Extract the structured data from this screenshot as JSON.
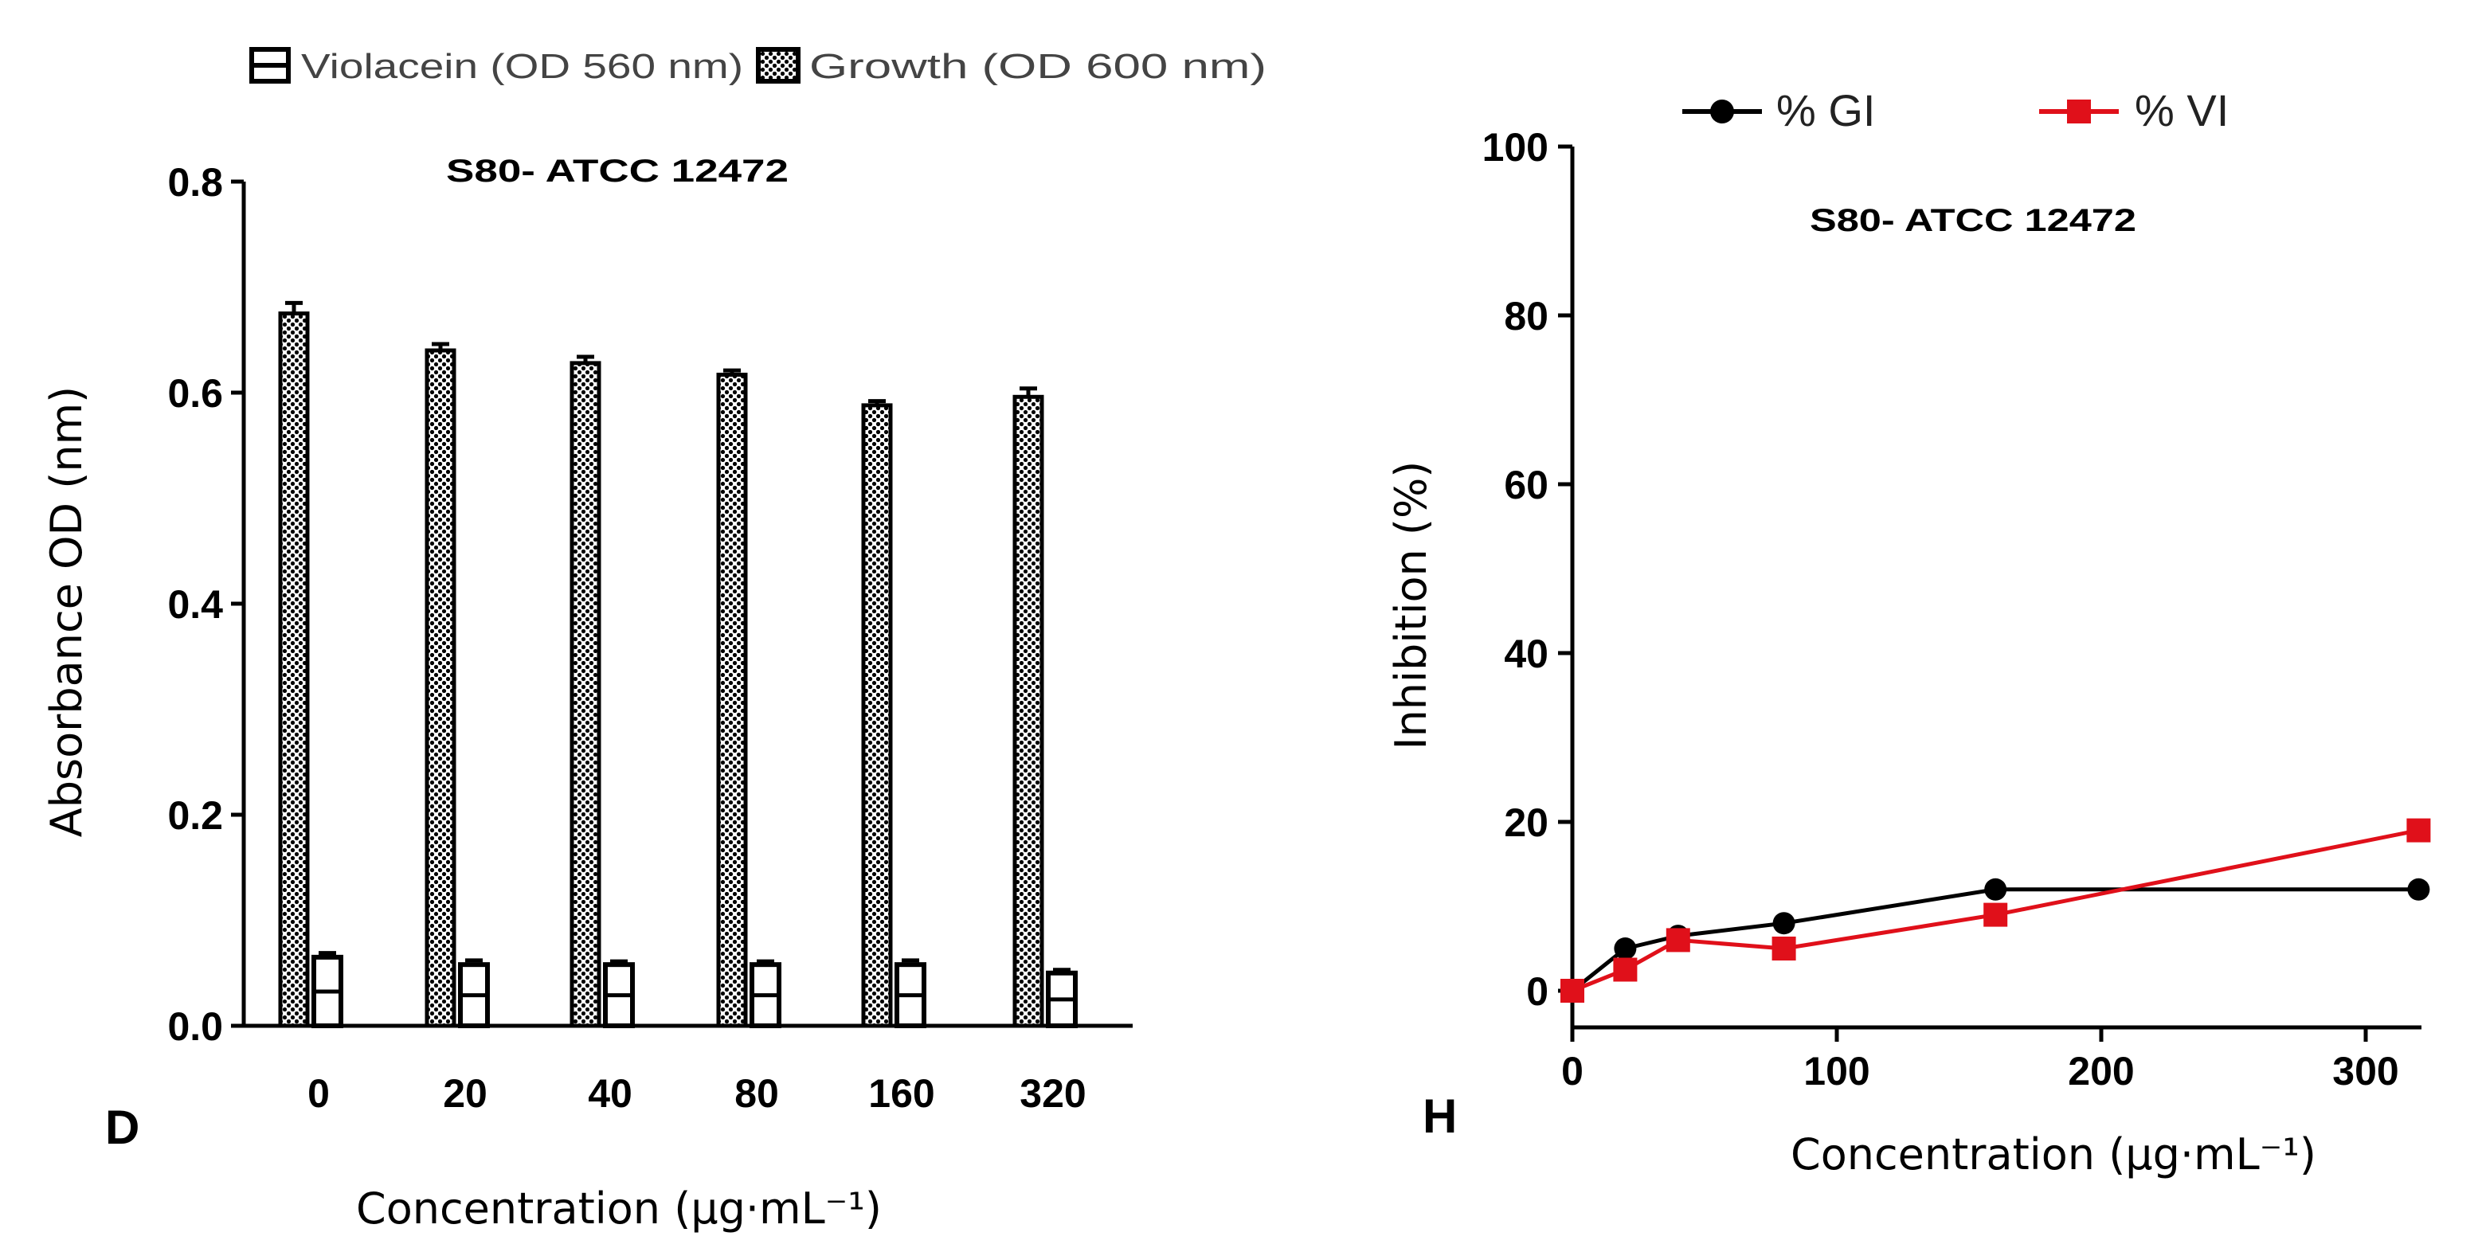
{
  "chart_data": [
    {
      "type": "bar",
      "panel_label": "D",
      "title": "S80- ATCC 12472",
      "xlabel": "Concentration (μg·mL⁻¹)",
      "ylabel": "Absorbance OD (nm)",
      "ylim": [
        0,
        0.8
      ],
      "yticks": [
        "0.0",
        "0.2",
        "0.4",
        "0.6",
        "0.8"
      ],
      "categories": [
        "0",
        "20",
        "40",
        "80",
        "160",
        "320"
      ],
      "legend_position": "top",
      "series": [
        {
          "name": "Violacein (OD 560 nm)",
          "values": [
            0.065,
            0.058,
            0.058,
            0.058,
            0.058,
            0.05
          ],
          "errors": [
            0.004,
            0.004,
            0.003,
            0.003,
            0.004,
            0.003
          ]
        },
        {
          "name": "Growth (OD 600 nm)",
          "values": [
            0.675,
            0.64,
            0.628,
            0.617,
            0.588,
            0.596
          ],
          "errors": [
            0.01,
            0.006,
            0.006,
            0.004,
            0.004,
            0.008
          ]
        }
      ]
    },
    {
      "type": "line",
      "panel_label": "H",
      "title": "S80- ATCC 12472",
      "xlabel": "Concentration (μg·mL⁻¹)",
      "ylabel": "Inhibition (%)",
      "xlim": [
        0,
        320
      ],
      "ylim": [
        0,
        100
      ],
      "xticks": [
        "0",
        "100",
        "200",
        "300"
      ],
      "yticks": [
        "0",
        "20",
        "40",
        "60",
        "80",
        "100"
      ],
      "legend_position": "top",
      "x": [
        0,
        20,
        40,
        80,
        160,
        320
      ],
      "series": [
        {
          "name": "% GI",
          "color": "#000000",
          "values": [
            0,
            5,
            6.5,
            8,
            12,
            12
          ],
          "errors": [
            0.5,
            0.8,
            0.8,
            0.8,
            1.0,
            1.2
          ]
        },
        {
          "name": "% VI",
          "color": "#e0101a",
          "values": [
            0,
            2.5,
            6,
            5,
            9,
            19
          ],
          "errors": [
            0.5,
            0.8,
            1.0,
            1.0,
            1.0,
            1.2
          ]
        }
      ]
    }
  ]
}
